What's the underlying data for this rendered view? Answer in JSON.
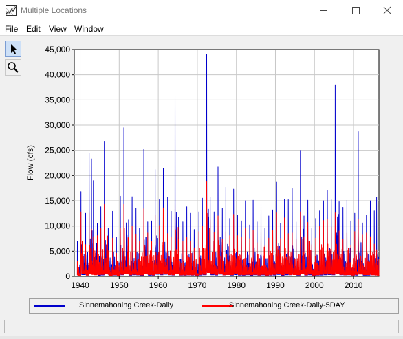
{
  "window": {
    "title": "Multiple Locations",
    "min_glyph": "—",
    "max_glyph": "☐",
    "close_glyph": "✕"
  },
  "menu": {
    "items": [
      {
        "label": "File"
      },
      {
        "label": "Edit"
      },
      {
        "label": "View"
      },
      {
        "label": "Window"
      }
    ]
  },
  "tools": {
    "pointer_icon": "pointer-icon",
    "zoom_icon": "magnifier-icon"
  },
  "chart_data": {
    "type": "line",
    "ylabel": "Flow (cfs)",
    "xlim": [
      1938.5,
      2016.5
    ],
    "ylim": [
      0,
      45000
    ],
    "x_ticks": [
      1940,
      1950,
      1960,
      1970,
      1980,
      1990,
      2000,
      2010
    ],
    "x_tick_labels": [
      "1940",
      "1950",
      "1960",
      "1970",
      "1980",
      "1990",
      "2000",
      "2010"
    ],
    "y_ticks": [
      0,
      5000,
      10000,
      15000,
      20000,
      25000,
      30000,
      35000,
      40000,
      45000
    ],
    "y_tick_labels": [
      "0",
      "5,000",
      "10,000",
      "15,000",
      "20,000",
      "25,000",
      "30,000",
      "35,000",
      "40,000",
      "45,000"
    ],
    "grid": true,
    "legend_position": "bottom",
    "series": [
      {
        "name": "Sinnemahoning Creek-Daily",
        "color": "#0000cc",
        "peaks": [
          [
            1939.3,
            7000
          ],
          [
            1940.2,
            16800
          ],
          [
            1941.4,
            12500
          ],
          [
            1942.3,
            24500
          ],
          [
            1942.9,
            23300
          ],
          [
            1943.4,
            19000
          ],
          [
            1944.4,
            10500
          ],
          [
            1945.3,
            13800
          ],
          [
            1946.2,
            26800
          ],
          [
            1947.2,
            9500
          ],
          [
            1948.3,
            12900
          ],
          [
            1949.3,
            7800
          ],
          [
            1950.3,
            15900
          ],
          [
            1951.2,
            29500
          ],
          [
            1952.4,
            11200
          ],
          [
            1953.3,
            15800
          ],
          [
            1954.3,
            13500
          ],
          [
            1955.2,
            9500
          ],
          [
            1956.3,
            25300
          ],
          [
            1957.3,
            10800
          ],
          [
            1958.3,
            11000
          ],
          [
            1959.2,
            21200
          ],
          [
            1960.3,
            15200
          ],
          [
            1961.3,
            21400
          ],
          [
            1962.4,
            15700
          ],
          [
            1963.3,
            12900
          ],
          [
            1964.3,
            36000
          ],
          [
            1965.2,
            11800
          ],
          [
            1966.3,
            10800
          ],
          [
            1967.3,
            13800
          ],
          [
            1968.3,
            12500
          ],
          [
            1969.2,
            9300
          ],
          [
            1970.4,
            12800
          ],
          [
            1971.3,
            15500
          ],
          [
            1972.4,
            44000
          ],
          [
            1973.3,
            15800
          ],
          [
            1974.3,
            12800
          ],
          [
            1975.3,
            21700
          ],
          [
            1976.4,
            13500
          ],
          [
            1977.3,
            17700
          ],
          [
            1978.3,
            11500
          ],
          [
            1979.3,
            17300
          ],
          [
            1980.3,
            12200
          ],
          [
            1981.3,
            11000
          ],
          [
            1982.3,
            15000
          ],
          [
            1983.4,
            10200
          ],
          [
            1984.3,
            15100
          ],
          [
            1985.3,
            10800
          ],
          [
            1986.3,
            14600
          ],
          [
            1987.3,
            9500
          ],
          [
            1988.3,
            12000
          ],
          [
            1989.3,
            13200
          ],
          [
            1990.3,
            18800
          ],
          [
            1991.3,
            10500
          ],
          [
            1992.3,
            15300
          ],
          [
            1993.3,
            15200
          ],
          [
            1994.3,
            17400
          ],
          [
            1995.3,
            10800
          ],
          [
            1996.4,
            25000
          ],
          [
            1997.3,
            12000
          ],
          [
            1998.3,
            15100
          ],
          [
            1999.3,
            9500
          ],
          [
            2000.3,
            11500
          ],
          [
            2001.3,
            13000
          ],
          [
            2002.3,
            15000
          ],
          [
            2003.3,
            17000
          ],
          [
            2004.3,
            15200
          ],
          [
            2005.3,
            38000
          ],
          [
            2006.3,
            14800
          ],
          [
            2007.3,
            13700
          ],
          [
            2008.3,
            15100
          ],
          [
            2009.3,
            11000
          ],
          [
            2010.3,
            12500
          ],
          [
            2011.2,
            28700
          ],
          [
            2012.3,
            10600
          ],
          [
            2013.3,
            12100
          ],
          [
            2014.3,
            15000
          ],
          [
            2015.3,
            13000
          ],
          [
            2015.9,
            15700
          ]
        ]
      },
      {
        "name": "Sinnemahoning Creek-Daily-5DAY",
        "color": "#ff0000",
        "peaks": [
          [
            1939.3,
            3000
          ],
          [
            1940.2,
            12800
          ],
          [
            1941.4,
            6300
          ],
          [
            1942.3,
            12600
          ],
          [
            1942.9,
            9400
          ],
          [
            1943.4,
            7900
          ],
          [
            1944.4,
            8100
          ],
          [
            1945.3,
            9600
          ],
          [
            1946.2,
            14400
          ],
          [
            1947.2,
            5100
          ],
          [
            1948.3,
            7600
          ],
          [
            1949.3,
            4600
          ],
          [
            1950.3,
            9600
          ],
          [
            1951.2,
            14300
          ],
          [
            1952.4,
            7700
          ],
          [
            1953.3,
            9900
          ],
          [
            1954.3,
            8300
          ],
          [
            1955.2,
            6900
          ],
          [
            1956.3,
            13400
          ],
          [
            1957.3,
            8600
          ],
          [
            1958.3,
            7000
          ],
          [
            1959.2,
            12200
          ],
          [
            1960.3,
            10100
          ],
          [
            1961.3,
            13600
          ],
          [
            1962.4,
            8500
          ],
          [
            1963.3,
            7800
          ],
          [
            1964.3,
            14900
          ],
          [
            1965.2,
            7300
          ],
          [
            1966.3,
            6900
          ],
          [
            1967.3,
            7700
          ],
          [
            1968.3,
            7000
          ],
          [
            1969.2,
            5700
          ],
          [
            1970.4,
            8900
          ],
          [
            1971.3,
            10000
          ],
          [
            1972.4,
            18900
          ],
          [
            1973.3,
            11200
          ],
          [
            1974.3,
            8800
          ],
          [
            1975.3,
            12000
          ],
          [
            1976.4,
            7400
          ],
          [
            1977.3,
            8900
          ],
          [
            1978.3,
            8100
          ],
          [
            1979.3,
            12300
          ],
          [
            1980.3,
            8100
          ],
          [
            1981.3,
            7800
          ],
          [
            1982.3,
            9600
          ],
          [
            1983.4,
            7500
          ],
          [
            1984.3,
            9100
          ],
          [
            1985.3,
            6700
          ],
          [
            1986.3,
            9300
          ],
          [
            1987.3,
            6100
          ],
          [
            1988.3,
            7600
          ],
          [
            1989.3,
            9100
          ],
          [
            1990.3,
            12600
          ],
          [
            1991.3,
            7500
          ],
          [
            1992.3,
            11600
          ],
          [
            1993.3,
            8500
          ],
          [
            1994.3,
            8600
          ],
          [
            1995.3,
            7500
          ],
          [
            1996.4,
            12800
          ],
          [
            1997.3,
            7900
          ],
          [
            1998.3,
            10700
          ],
          [
            1999.3,
            6300
          ],
          [
            2000.3,
            7600
          ],
          [
            2001.3,
            9900
          ],
          [
            2002.3,
            11100
          ],
          [
            2003.3,
            11300
          ],
          [
            2004.3,
            9800
          ],
          [
            2005.3,
            12600
          ],
          [
            2006.3,
            9000
          ],
          [
            2007.3,
            7400
          ],
          [
            2008.3,
            8600
          ],
          [
            2009.3,
            6100
          ],
          [
            2010.3,
            8900
          ],
          [
            2011.2,
            11300
          ],
          [
            2012.3,
            8200
          ],
          [
            2013.3,
            8600
          ],
          [
            2014.3,
            7900
          ],
          [
            2015.3,
            6400
          ],
          [
            2015.9,
            5300
          ]
        ]
      }
    ]
  }
}
